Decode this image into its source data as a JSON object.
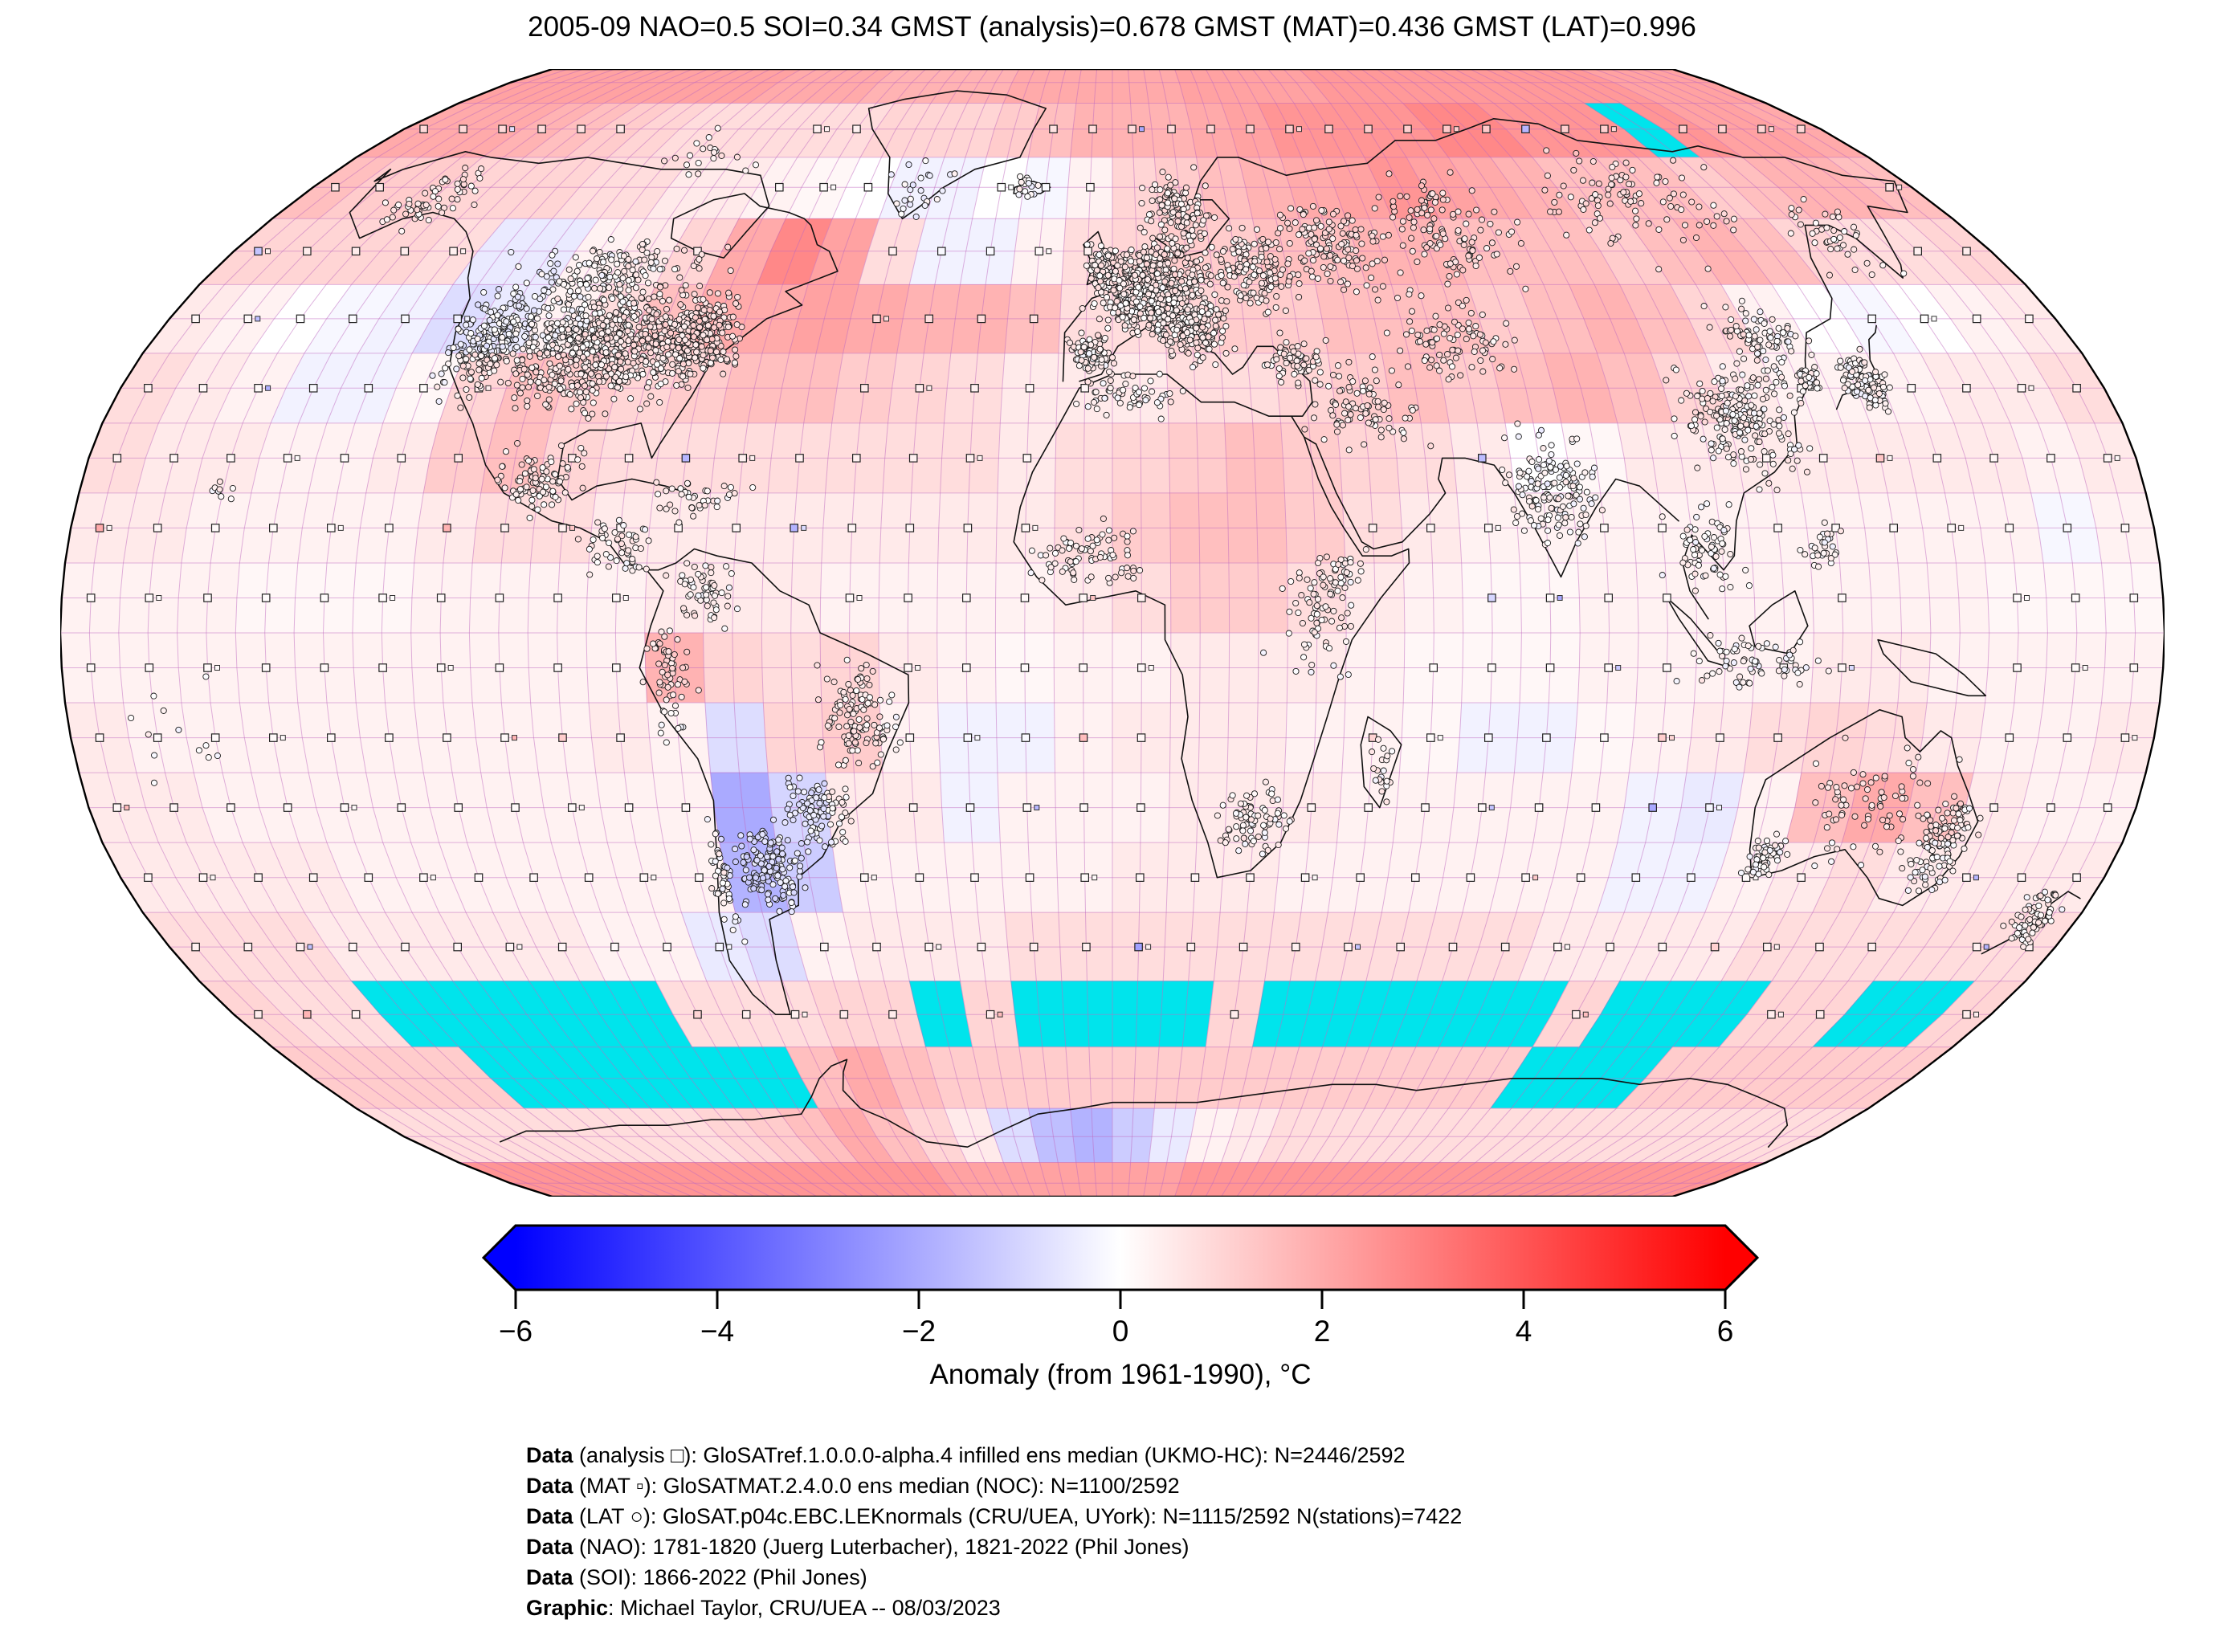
{
  "title": "2005-09 NAO=0.5 SOI=0.34 GMST (analysis)=0.678 GMST (MAT)=0.436 GMST (LAT)=0.996",
  "colorbar": {
    "label": "Anomaly (from 1961-1990), °C",
    "tick_labels": [
      "−6",
      "−4",
      "−2",
      "0",
      "2",
      "4",
      "6"
    ],
    "ticks": [
      -6,
      -4,
      -2,
      0,
      2,
      4,
      6
    ],
    "range": [
      -6,
      6
    ],
    "color_negative": "#0000ff",
    "color_zero": "#ffffff",
    "color_positive": "#ff0000"
  },
  "footnotes": [
    {
      "lead": "Data",
      "rest": " (analysis □): GloSATref.1.0.0.0-alpha.4 infilled ens median (UKMO-HC): N=2446/2592"
    },
    {
      "lead": "Data",
      "rest": " (MAT ▫): GloSATMAT.2.4.0.0 ens median (NOC): N=1100/2592"
    },
    {
      "lead": "Data",
      "rest": " (LAT ○): GloSAT.p04c.EBC.LEKnormals (CRU/UEA, UYork): N=1115/2592 N(stations)=7422"
    },
    {
      "lead": "Data",
      "rest": " (NAO): 1781-1820 (Juerg Luterbacher), 1821-2022 (Phil Jones)"
    },
    {
      "lead": "Data",
      "rest": " (SOI): 1866-2022 (Phil Jones)"
    },
    {
      "lead": "Graphic",
      "rest": ": Michael Taylor, CRU/UEA -- 08/03/2023"
    }
  ],
  "chart_data": {
    "type": "heatmap",
    "subtype": "global-anomaly-map",
    "projection": "robinson",
    "title": "2005-09 NAO=0.5 SOI=0.34 GMST (analysis)=0.678 GMST (MAT)=0.436 GMST (LAT)=0.996",
    "stats": {
      "period": "2005-09",
      "NAO": 0.5,
      "SOI": 0.34,
      "GMST_analysis": 0.678,
      "GMST_MAT": 0.436,
      "GMST_LAT": 0.996
    },
    "colorbar_label": "Anomaly (from 1961-1990), °C",
    "colorbar_range": [
      -6,
      6
    ],
    "grid_resolution_deg": 5,
    "anomaly_grid_deg": 10,
    "missing_color": "#00e4ec",
    "gridline_color": "#c06ac0",
    "markers": {
      "analysis": {
        "symbol": "□",
        "desc": "infilled ens median grid squares",
        "n": "2446/2592"
      },
      "mat": {
        "symbol": "▫",
        "desc": "marine air temperature squares",
        "n": "1100/2592"
      },
      "lat": {
        "symbol": "○",
        "desc": "land air temperature station circles",
        "n": "1115/2592",
        "stations": 7422
      }
    },
    "lat_centers": [
      85,
      75,
      65,
      55,
      45,
      35,
      25,
      15,
      5,
      -5,
      -15,
      -25,
      -35,
      -45,
      -55,
      -65,
      -75,
      -85
    ],
    "lon_start": -180,
    "anomaly": [
      [
        2.2,
        2.2,
        2.2,
        2.2,
        2.2,
        2.2,
        2.2,
        2.2,
        2,
        2,
        2,
        1.8,
        1.8,
        1.8,
        1.8,
        2,
        2,
        2,
        2,
        2,
        2.2,
        2.2,
        2.2,
        2.2,
        2.4,
        2.4,
        2.4,
        2.4,
        2.4,
        2.4,
        2.4,
        2.4,
        2.4,
        2.2,
        2.2,
        2.2
      ],
      [
        2,
        2,
        2,
        1.8,
        1.5,
        1.2,
        1,
        0.8,
        0.8,
        0.8,
        0.8,
        0.8,
        1,
        1,
        1,
        1.2,
        1.5,
        1.8,
        1.8,
        1.8,
        2,
        2.2,
        2.5,
        2.5,
        2.5,
        2.5,
        2.8,
        2.8,
        2.5,
        2.5,
        2.5,
        null,
        2.5,
        2.2,
        2.2,
        2
      ],
      [
        1.5,
        1.2,
        1.2,
        1,
        1,
        1,
        0.8,
        0.8,
        0.5,
        0.5,
        0.3,
        0.2,
        0,
        -0.3,
        -0.3,
        0,
        -0.2,
        0.3,
        1,
        1.2,
        1.5,
        1.8,
        2,
        2.2,
        2.5,
        2.2,
        2,
        1.8,
        1.5,
        1.5,
        1.5,
        1.2,
        1.5,
        1.8,
        1.8,
        1.5
      ],
      [
        1,
        1,
        1,
        1,
        0.8,
        -0.5,
        -0.5,
        0.3,
        0.5,
        1,
        2,
        2.8,
        2.2,
        0.8,
        -0.3,
        -0.3,
        0.3,
        0.8,
        1,
        1.2,
        1.2,
        1.5,
        1.5,
        1.8,
        1.8,
        1.5,
        1.5,
        1.5,
        1.2,
        1.5,
        1.8,
        1.5,
        1,
        0.8,
        0.8,
        1
      ],
      [
        0.5,
        0.3,
        0,
        -0.2,
        -0.3,
        -0.8,
        -0.5,
        0.3,
        0.8,
        1.5,
        2,
        2,
        2.2,
        2,
        1.8,
        1.8,
        1.5,
        0.8,
        0.8,
        1,
        1.2,
        1.2,
        1.5,
        1.5,
        1.5,
        1.2,
        1.5,
        1.8,
        1.5,
        1,
        0.3,
        0,
        -0.2,
        0,
        0.3,
        0.5
      ],
      [
        0.8,
        0.5,
        0.3,
        -0.3,
        -0.3,
        0.2,
        1,
        1.5,
        1.2,
        1,
        1.2,
        1.5,
        1.5,
        1.2,
        1,
        0.8,
        0.5,
        0.5,
        0.5,
        0.8,
        0.8,
        1,
        1.2,
        1.5,
        1.2,
        1.5,
        1.8,
        1.5,
        1,
        0.5,
        0.3,
        0.3,
        0.3,
        0.5,
        0.5,
        0.8
      ],
      [
        0.8,
        0.5,
        0.5,
        0.3,
        0.3,
        0.5,
        1.2,
        1.5,
        1,
        0.8,
        0.8,
        0.8,
        0.8,
        0.8,
        0.8,
        0.8,
        0.5,
        0.8,
        1,
        1.2,
        1.5,
        1.2,
        1,
        0.8,
        0.5,
        0,
        0.2,
        0.5,
        0.5,
        0.5,
        0.5,
        0.5,
        0.5,
        0.5,
        0.3,
        0.5
      ],
      [
        0.5,
        0.5,
        0.3,
        0.3,
        0.3,
        0.3,
        0.5,
        0.8,
        0.8,
        0.5,
        0.5,
        0.5,
        0.5,
        0.5,
        0.5,
        0.5,
        0.5,
        0.8,
        1.2,
        1.5,
        1.5,
        1.2,
        0.8,
        0.5,
        0.3,
        0.3,
        0.3,
        0.3,
        0.3,
        0.3,
        0.3,
        0.3,
        0.3,
        0.3,
        -0.2,
        0.3
      ],
      [
        0.3,
        0.3,
        0.3,
        0.2,
        0.2,
        0.2,
        0.3,
        0.3,
        0.3,
        0.3,
        0.5,
        0.5,
        0.5,
        0.3,
        0.3,
        0.3,
        0.3,
        0.5,
        0.8,
        1.2,
        1.2,
        0.8,
        0.5,
        0.3,
        0.2,
        0.2,
        0.3,
        0.3,
        0.3,
        0.3,
        0.3,
        0.3,
        0.3,
        0.2,
        0.2,
        0.2
      ],
      [
        0.3,
        0.3,
        0.3,
        0.3,
        0.3,
        0.3,
        0.3,
        0.3,
        0.3,
        0.3,
        1.8,
        1,
        0.8,
        1,
        0.5,
        0.3,
        0.2,
        0.3,
        0.3,
        0.5,
        0.5,
        0.5,
        0.3,
        0.2,
        0.2,
        0.2,
        0.3,
        0.3,
        0.3,
        0.3,
        0.5,
        0.5,
        0.3,
        0.3,
        0.3,
        0.3
      ],
      [
        0.5,
        0.3,
        0.3,
        0.3,
        0.3,
        0.3,
        0.3,
        0.3,
        0.3,
        0.5,
        0.3,
        -0.8,
        1,
        1.2,
        0.3,
        -0.3,
        -0.3,
        0.3,
        0.5,
        0.5,
        0.5,
        0.3,
        0.3,
        0.2,
        -0.3,
        -0.3,
        0.2,
        0.3,
        0.5,
        0.8,
        1,
        0.8,
        0.5,
        0.3,
        0.3,
        0.5
      ],
      [
        0.5,
        0.5,
        0.3,
        0.3,
        0.3,
        0.3,
        0.3,
        0.3,
        0.3,
        0.3,
        0.3,
        -2,
        -1,
        0.5,
        0.5,
        -0.3,
        0.3,
        0.3,
        0.3,
        0.5,
        0.5,
        0.5,
        0.3,
        0.3,
        0.3,
        0.3,
        0.3,
        -0.3,
        -0.5,
        0.3,
        1.5,
        2,
        1.5,
        0.5,
        0.3,
        0.3
      ],
      [
        0.5,
        0.5,
        0.5,
        0.5,
        0.3,
        0.3,
        0.3,
        0.3,
        0.3,
        0.3,
        0.3,
        -1.8,
        -1.2,
        0.3,
        0.3,
        0.3,
        0.3,
        0.3,
        0.5,
        0.5,
        0.5,
        0.3,
        0.3,
        0.3,
        0.3,
        0.3,
        0.3,
        -0.3,
        -0.3,
        0.3,
        0.5,
        0.8,
        0.5,
        0.5,
        0.5,
        0.5
      ],
      [
        0.8,
        0.8,
        0.8,
        0.5,
        0.5,
        0.5,
        0.5,
        0.5,
        0.3,
        0.3,
        -0.5,
        -0.8,
        0.3,
        0.5,
        0.5,
        0.5,
        0.8,
        0.8,
        0.8,
        0.8,
        0.8,
        0.8,
        0.8,
        0.8,
        0.8,
        0.8,
        0.5,
        0.5,
        0.5,
        0.5,
        0.8,
        0.8,
        0.8,
        0.8,
        0.8,
        0.8
      ],
      [
        1,
        0.8,
        0.8,
        null,
        null,
        null,
        null,
        null,
        null,
        0.8,
        0.8,
        0.8,
        1,
        1,
        null,
        1,
        null,
        null,
        null,
        null,
        1,
        null,
        null,
        null,
        null,
        null,
        null,
        1,
        null,
        null,
        null,
        1,
        1,
        null,
        null,
        1
      ],
      [
        1.2,
        1.2,
        1.2,
        1.2,
        null,
        null,
        null,
        null,
        null,
        null,
        null,
        1.5,
        2,
        1.5,
        1.2,
        1.2,
        1.2,
        1.2,
        1.2,
        1.2,
        1.2,
        1.2,
        1.2,
        1.2,
        1.2,
        1.2,
        1.2,
        null,
        null,
        null,
        1.2,
        1.2,
        1.2,
        1.2,
        1.2,
        1.2
      ],
      [
        0.8,
        0.8,
        0.8,
        0.8,
        0.8,
        0.8,
        0.8,
        0.8,
        1,
        1.2,
        1.5,
        2,
        1.5,
        1,
        0.5,
        -0.8,
        -1.5,
        -1.8,
        -1.2,
        -0.5,
        0.3,
        0.5,
        0.8,
        0.8,
        0.8,
        0.8,
        0.8,
        0.8,
        0.8,
        0.8,
        0.8,
        0.8,
        0.8,
        0.8,
        0.8,
        0.8
      ],
      [
        2.5,
        2.5,
        2.5,
        2.5,
        2.5,
        2.5,
        2.5,
        2.5,
        2.5,
        2.5,
        2.5,
        2.5,
        2.5,
        2.2,
        2.2,
        2.2,
        2.2,
        2.2,
        2.2,
        2.2,
        2.5,
        2.5,
        2.5,
        2.5,
        2.5,
        2.5,
        2.5,
        2.5,
        2.5,
        2.5,
        2.5,
        2.5,
        2.5,
        2.5,
        2.5,
        2.5
      ]
    ],
    "analysis_marker_mask": [
      "000000000000000000000000000000000000",
      "111111000011000011111111111111101111",
      "110000000011100111000000000000000001",
      "111110000100011111000000000000000011",
      "111111000000011110000000000000001111",
      "111111100000011111000000000000111111",
      "111111101111111110000000100001111111",
      "111111111111111110000011101101111111",
      "111111111100011111100000111100100111",
      "111111111100001111100001111101100111",
      "111111111100001111100011111111000111",
      "111111111110001111100111111110000111",
      "111111111110011111111111111111100111",
      "111111111110111111111111111111111011",
      "111111111111111111111111111111111111",
      "000000000000000000000000000000000000",
      "000000000000000000000000000000000000",
      "000000000000000000000000000000000000"
    ],
    "station_clusters": [
      [
        -97,
        41,
        16,
        9,
        700
      ],
      [
        -78,
        42,
        7,
        6,
        350
      ],
      [
        -117,
        42,
        7,
        7,
        250
      ],
      [
        -100,
        52,
        18,
        4,
        150
      ],
      [
        -150,
        63,
        9,
        5,
        60
      ],
      [
        -100,
        22,
        7,
        5,
        90
      ],
      [
        -85,
        12,
        6,
        4,
        50
      ],
      [
        -72,
        19,
        8,
        3,
        40
      ],
      [
        8,
        49,
        11,
        6,
        700
      ],
      [
        -2,
        53,
        3,
        3,
        80
      ],
      [
        -4,
        40,
        4,
        3,
        80
      ],
      [
        16,
        43,
        6,
        4,
        120
      ],
      [
        14,
        61,
        7,
        6,
        150
      ],
      [
        28,
        52,
        8,
        6,
        150
      ],
      [
        45,
        56,
        12,
        7,
        140
      ],
      [
        70,
        58,
        15,
        8,
        120
      ],
      [
        115,
        62,
        20,
        8,
        100
      ],
      [
        150,
        57,
        8,
        6,
        40
      ],
      [
        65,
        42,
        12,
        6,
        90
      ],
      [
        45,
        32,
        10,
        6,
        90
      ],
      [
        33,
        39,
        6,
        3,
        60
      ],
      [
        77,
        21,
        8,
        8,
        160
      ],
      [
        102,
        12,
        7,
        7,
        70
      ],
      [
        112,
        30,
        10,
        8,
        220
      ],
      [
        122,
        42,
        8,
        5,
        90
      ],
      [
        137,
        36,
        4,
        4,
        110
      ],
      [
        127,
        36,
        2,
        2,
        30
      ],
      [
        110,
        -4,
        12,
        4,
        70
      ],
      [
        122,
        12,
        3,
        4,
        30
      ],
      [
        3,
        34,
        10,
        3,
        60
      ],
      [
        -5,
        11,
        10,
        5,
        80
      ],
      [
        35,
        3,
        7,
        8,
        70
      ],
      [
        39,
        9,
        4,
        3,
        30
      ],
      [
        25,
        -27,
        6,
        5,
        80
      ],
      [
        47,
        -19,
        2,
        4,
        20
      ],
      [
        -70,
        6,
        6,
        5,
        60
      ],
      [
        -76,
        -6,
        4,
        8,
        60
      ],
      [
        -44,
        -12,
        7,
        7,
        120
      ],
      [
        -52,
        -26,
        6,
        5,
        100
      ],
      [
        -62,
        -33,
        6,
        7,
        150
      ],
      [
        -71,
        -35,
        2,
        8,
        50
      ],
      [
        148,
        -30,
        5,
        7,
        120
      ],
      [
        133,
        -25,
        12,
        8,
        80
      ],
      [
        117,
        -32,
        3,
        3,
        60
      ],
      [
        172,
        -41,
        4,
        4,
        70
      ],
      [
        -45,
        65,
        8,
        6,
        25
      ],
      [
        -19,
        65,
        3,
        2,
        15
      ],
      [
        -95,
        70,
        12,
        4,
        20
      ],
      [
        -160,
        -15,
        12,
        8,
        12
      ],
      [
        -156,
        20,
        3,
        2,
        8
      ]
    ]
  }
}
